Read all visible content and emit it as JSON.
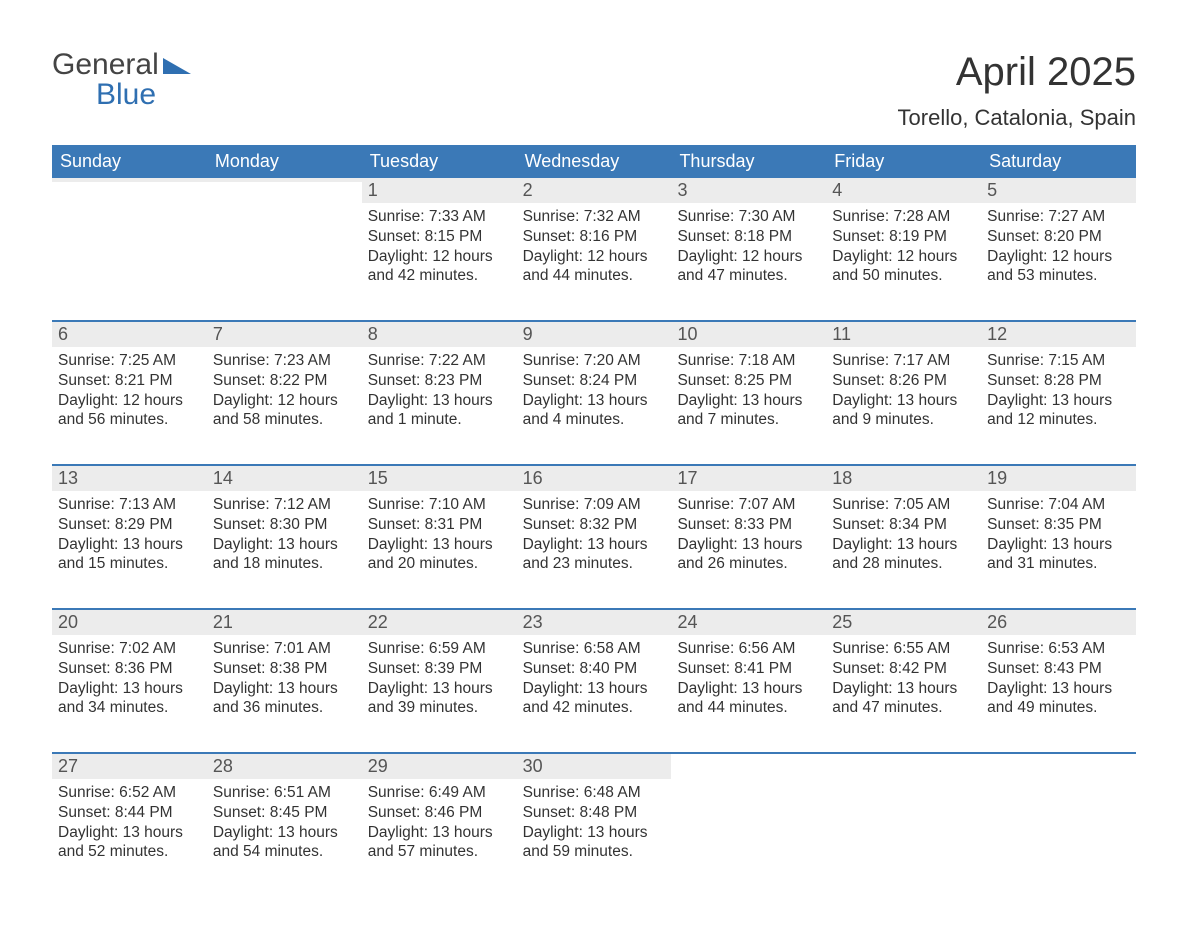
{
  "logo": {
    "line1": "General",
    "line2": "Blue",
    "tri_color": "#2f6fb1"
  },
  "title": {
    "month": "April 2025",
    "location": "Torello, Catalonia, Spain"
  },
  "colors": {
    "header_bg": "#3b79b7",
    "header_text": "#ffffff",
    "daynum_bg": "#ececec",
    "text": "#333333",
    "week_border": "#3b79b7"
  },
  "day_headers": [
    "Sunday",
    "Monday",
    "Tuesday",
    "Wednesday",
    "Thursday",
    "Friday",
    "Saturday"
  ],
  "weeks": [
    [
      {
        "blank": true
      },
      {
        "blank": true
      },
      {
        "day": "1",
        "sunrise": "Sunrise: 7:33 AM",
        "sunset": "Sunset: 8:15 PM",
        "day1": "Daylight: 12 hours",
        "day2": "and 42 minutes."
      },
      {
        "day": "2",
        "sunrise": "Sunrise: 7:32 AM",
        "sunset": "Sunset: 8:16 PM",
        "day1": "Daylight: 12 hours",
        "day2": "and 44 minutes."
      },
      {
        "day": "3",
        "sunrise": "Sunrise: 7:30 AM",
        "sunset": "Sunset: 8:18 PM",
        "day1": "Daylight: 12 hours",
        "day2": "and 47 minutes."
      },
      {
        "day": "4",
        "sunrise": "Sunrise: 7:28 AM",
        "sunset": "Sunset: 8:19 PM",
        "day1": "Daylight: 12 hours",
        "day2": "and 50 minutes."
      },
      {
        "day": "5",
        "sunrise": "Sunrise: 7:27 AM",
        "sunset": "Sunset: 8:20 PM",
        "day1": "Daylight: 12 hours",
        "day2": "and 53 minutes."
      }
    ],
    [
      {
        "day": "6",
        "sunrise": "Sunrise: 7:25 AM",
        "sunset": "Sunset: 8:21 PM",
        "day1": "Daylight: 12 hours",
        "day2": "and 56 minutes."
      },
      {
        "day": "7",
        "sunrise": "Sunrise: 7:23 AM",
        "sunset": "Sunset: 8:22 PM",
        "day1": "Daylight: 12 hours",
        "day2": "and 58 minutes."
      },
      {
        "day": "8",
        "sunrise": "Sunrise: 7:22 AM",
        "sunset": "Sunset: 8:23 PM",
        "day1": "Daylight: 13 hours",
        "day2": "and 1 minute."
      },
      {
        "day": "9",
        "sunrise": "Sunrise: 7:20 AM",
        "sunset": "Sunset: 8:24 PM",
        "day1": "Daylight: 13 hours",
        "day2": "and 4 minutes."
      },
      {
        "day": "10",
        "sunrise": "Sunrise: 7:18 AM",
        "sunset": "Sunset: 8:25 PM",
        "day1": "Daylight: 13 hours",
        "day2": "and 7 minutes."
      },
      {
        "day": "11",
        "sunrise": "Sunrise: 7:17 AM",
        "sunset": "Sunset: 8:26 PM",
        "day1": "Daylight: 13 hours",
        "day2": "and 9 minutes."
      },
      {
        "day": "12",
        "sunrise": "Sunrise: 7:15 AM",
        "sunset": "Sunset: 8:28 PM",
        "day1": "Daylight: 13 hours",
        "day2": "and 12 minutes."
      }
    ],
    [
      {
        "day": "13",
        "sunrise": "Sunrise: 7:13 AM",
        "sunset": "Sunset: 8:29 PM",
        "day1": "Daylight: 13 hours",
        "day2": "and 15 minutes."
      },
      {
        "day": "14",
        "sunrise": "Sunrise: 7:12 AM",
        "sunset": "Sunset: 8:30 PM",
        "day1": "Daylight: 13 hours",
        "day2": "and 18 minutes."
      },
      {
        "day": "15",
        "sunrise": "Sunrise: 7:10 AM",
        "sunset": "Sunset: 8:31 PM",
        "day1": "Daylight: 13 hours",
        "day2": "and 20 minutes."
      },
      {
        "day": "16",
        "sunrise": "Sunrise: 7:09 AM",
        "sunset": "Sunset: 8:32 PM",
        "day1": "Daylight: 13 hours",
        "day2": "and 23 minutes."
      },
      {
        "day": "17",
        "sunrise": "Sunrise: 7:07 AM",
        "sunset": "Sunset: 8:33 PM",
        "day1": "Daylight: 13 hours",
        "day2": "and 26 minutes."
      },
      {
        "day": "18",
        "sunrise": "Sunrise: 7:05 AM",
        "sunset": "Sunset: 8:34 PM",
        "day1": "Daylight: 13 hours",
        "day2": "and 28 minutes."
      },
      {
        "day": "19",
        "sunrise": "Sunrise: 7:04 AM",
        "sunset": "Sunset: 8:35 PM",
        "day1": "Daylight: 13 hours",
        "day2": "and 31 minutes."
      }
    ],
    [
      {
        "day": "20",
        "sunrise": "Sunrise: 7:02 AM",
        "sunset": "Sunset: 8:36 PM",
        "day1": "Daylight: 13 hours",
        "day2": "and 34 minutes."
      },
      {
        "day": "21",
        "sunrise": "Sunrise: 7:01 AM",
        "sunset": "Sunset: 8:38 PM",
        "day1": "Daylight: 13 hours",
        "day2": "and 36 minutes."
      },
      {
        "day": "22",
        "sunrise": "Sunrise: 6:59 AM",
        "sunset": "Sunset: 8:39 PM",
        "day1": "Daylight: 13 hours",
        "day2": "and 39 minutes."
      },
      {
        "day": "23",
        "sunrise": "Sunrise: 6:58 AM",
        "sunset": "Sunset: 8:40 PM",
        "day1": "Daylight: 13 hours",
        "day2": "and 42 minutes."
      },
      {
        "day": "24",
        "sunrise": "Sunrise: 6:56 AM",
        "sunset": "Sunset: 8:41 PM",
        "day1": "Daylight: 13 hours",
        "day2": "and 44 minutes."
      },
      {
        "day": "25",
        "sunrise": "Sunrise: 6:55 AM",
        "sunset": "Sunset: 8:42 PM",
        "day1": "Daylight: 13 hours",
        "day2": "and 47 minutes."
      },
      {
        "day": "26",
        "sunrise": "Sunrise: 6:53 AM",
        "sunset": "Sunset: 8:43 PM",
        "day1": "Daylight: 13 hours",
        "day2": "and 49 minutes."
      }
    ],
    [
      {
        "day": "27",
        "sunrise": "Sunrise: 6:52 AM",
        "sunset": "Sunset: 8:44 PM",
        "day1": "Daylight: 13 hours",
        "day2": "and 52 minutes."
      },
      {
        "day": "28",
        "sunrise": "Sunrise: 6:51 AM",
        "sunset": "Sunset: 8:45 PM",
        "day1": "Daylight: 13 hours",
        "day2": "and 54 minutes."
      },
      {
        "day": "29",
        "sunrise": "Sunrise: 6:49 AM",
        "sunset": "Sunset: 8:46 PM",
        "day1": "Daylight: 13 hours",
        "day2": "and 57 minutes."
      },
      {
        "day": "30",
        "sunrise": "Sunrise: 6:48 AM",
        "sunset": "Sunset: 8:48 PM",
        "day1": "Daylight: 13 hours",
        "day2": "and 59 minutes."
      },
      {
        "blank": true,
        "nobg": true
      },
      {
        "blank": true,
        "nobg": true
      },
      {
        "blank": true,
        "nobg": true
      }
    ]
  ]
}
